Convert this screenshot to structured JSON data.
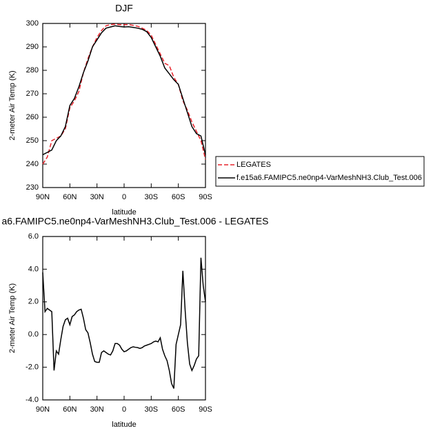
{
  "chart_data": [
    {
      "type": "line",
      "title": "DJF",
      "xlabel": "latitude",
      "ylabel": "2-meter Air Temp (K)",
      "xlim": [
        90,
        -90
      ],
      "xticks": [
        {
          "value": 90,
          "label": "90N"
        },
        {
          "value": 60,
          "label": "60N"
        },
        {
          "value": 30,
          "label": "30N"
        },
        0,
        {
          "value": -30,
          "label": "30S"
        },
        {
          "value": -60,
          "label": "60S"
        },
        {
          "value": -90,
          "label": "90S"
        }
      ],
      "ylim": [
        230,
        300
      ],
      "yticks": [
        230,
        240,
        250,
        260,
        270,
        280,
        290,
        300
      ],
      "legend": "right",
      "x": [
        90,
        85,
        80,
        75,
        70,
        65,
        60,
        55,
        50,
        45,
        40,
        35,
        30,
        25,
        20,
        15,
        10,
        5,
        0,
        -5,
        -10,
        -15,
        -20,
        -25,
        -30,
        -35,
        -40,
        -45,
        -50,
        -55,
        -60,
        -65,
        -70,
        -75,
        -80,
        -85,
        -90
      ],
      "series": [
        {
          "name": "LEGATES",
          "color": "#e8232b",
          "linestyle": "dashed",
          "values": [
            240,
            243,
            250,
            251,
            252,
            255,
            264,
            267,
            271,
            279,
            285,
            290,
            294,
            297,
            299,
            299.5,
            299.7,
            299.5,
            299.5,
            299.5,
            299.2,
            298.8,
            298,
            297,
            295,
            291,
            287,
            283,
            282,
            277,
            274,
            267,
            263,
            258,
            254,
            250,
            242
          ]
        },
        {
          "name": "f.e15a6.FAMIPC5.ne0np4-VarMeshNH3.Club_Test.006",
          "color": "#000000",
          "linestyle": "solid",
          "values": [
            244,
            245,
            246,
            250,
            252,
            256,
            265,
            268,
            273,
            279,
            284,
            290,
            293,
            296,
            298,
            298.5,
            299,
            298.7,
            298.5,
            298.6,
            298.3,
            298,
            297.5,
            296.5,
            294,
            290,
            286,
            281,
            278.5,
            276,
            274,
            268,
            262,
            256,
            253,
            252,
            244
          ]
        }
      ]
    },
    {
      "type": "line",
      "title": "a6.FAMIPC5.ne0np4-VarMeshNH3.Club_Test.006 - LEGATES",
      "xlabel": "latitude",
      "ylabel": "2-meter Air Temp (K)",
      "xlim": [
        90,
        -90
      ],
      "xticks": [
        {
          "value": 90,
          "label": "90N"
        },
        {
          "value": 60,
          "label": "60N"
        },
        {
          "value": 30,
          "label": "30N"
        },
        0,
        {
          "value": -30,
          "label": "30S"
        },
        {
          "value": -60,
          "label": "60S"
        },
        {
          "value": -90,
          "label": "90S"
        }
      ],
      "ylim": [
        -4,
        6
      ],
      "yticks": [
        {
          "value": -4,
          "label": "-4.0"
        },
        {
          "value": -2,
          "label": "-2.0"
        },
        {
          "value": 0,
          "label": "0.0"
        },
        {
          "value": 2,
          "label": "2.0"
        },
        {
          "value": 4,
          "label": "4.0"
        },
        {
          "value": 6,
          "label": "6.0"
        }
      ],
      "x": [
        90,
        87.5,
        85,
        82.5,
        80,
        77.5,
        75,
        72.5,
        70,
        67.5,
        65,
        62.5,
        60,
        57.5,
        55,
        52.5,
        50,
        47.5,
        45,
        42.5,
        40,
        37.5,
        35,
        32.5,
        30,
        27.5,
        25,
        22.5,
        20,
        17.5,
        15,
        12.5,
        10,
        7.5,
        5,
        2.5,
        0,
        -2.5,
        -5,
        -7.5,
        -10,
        -12.5,
        -15,
        -17.5,
        -20,
        -22.5,
        -25,
        -27.5,
        -30,
        -32.5,
        -35,
        -37.5,
        -40,
        -42.5,
        -45,
        -47.5,
        -50,
        -52.5,
        -55,
        -57.5,
        -60,
        -62.5,
        -65,
        -67.5,
        -70,
        -72.5,
        -75,
        -77.5,
        -80,
        -82.5,
        -85,
        -87.5,
        -90
      ],
      "series": [
        {
          "color": "#000000",
          "linestyle": "solid",
          "values": [
            3.8,
            1.4,
            1.6,
            1.5,
            1.4,
            -2.2,
            -1.0,
            -1.2,
            -0.3,
            0.5,
            0.9,
            1.0,
            0.6,
            1.1,
            1.2,
            1.4,
            1.5,
            1.55,
            1.0,
            0.3,
            0.1,
            -0.5,
            -1.2,
            -1.65,
            -1.7,
            -1.7,
            -1.1,
            -1.0,
            -1.1,
            -1.2,
            -1.25,
            -1.0,
            -0.55,
            -0.55,
            -0.65,
            -0.9,
            -1.05,
            -1.0,
            -0.9,
            -0.8,
            -0.75,
            -0.78,
            -0.8,
            -0.85,
            -0.8,
            -0.7,
            -0.65,
            -0.6,
            -0.55,
            -0.45,
            -0.4,
            -0.45,
            -0.2,
            -0.9,
            -1.3,
            -1.6,
            -2.2,
            -3.0,
            -3.3,
            -0.6,
            0,
            0.6,
            3.9,
            1.5,
            -0.5,
            -1.8,
            -2.2,
            -1.9,
            -1.5,
            -1.3,
            4.7,
            3.0,
            2.0
          ]
        }
      ]
    }
  ]
}
